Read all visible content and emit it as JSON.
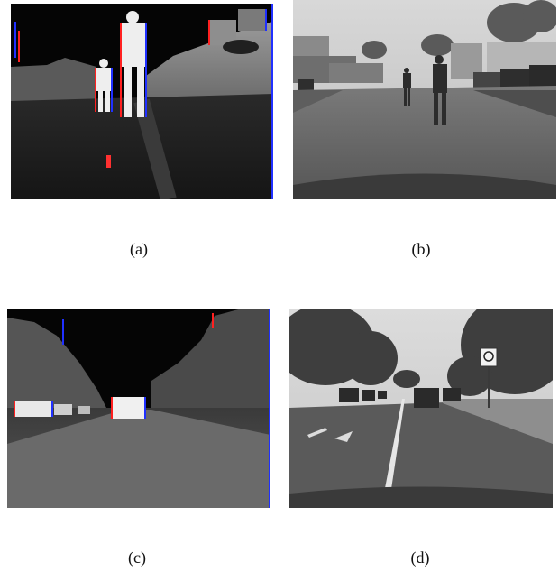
{
  "panels": [
    {
      "id": "a",
      "label": "(a)",
      "kind": "thermal",
      "scene": "pedestrians"
    },
    {
      "id": "b",
      "label": "(b)",
      "kind": "grayscale",
      "scene": "pedestrians"
    },
    {
      "id": "c",
      "label": "(c)",
      "kind": "thermal",
      "scene": "vehicles"
    },
    {
      "id": "d",
      "label": "(d)",
      "kind": "grayscale",
      "scene": "vehicles"
    }
  ],
  "colors": {
    "background": "#ffffff",
    "thermal_sky": "#050505",
    "thermal_hot": "#f2f2f2",
    "edge_red": "#ff2020",
    "edge_blue": "#2030ff",
    "gray_sky": "#cfcfcf",
    "gray_road": "#6a6a6a"
  }
}
